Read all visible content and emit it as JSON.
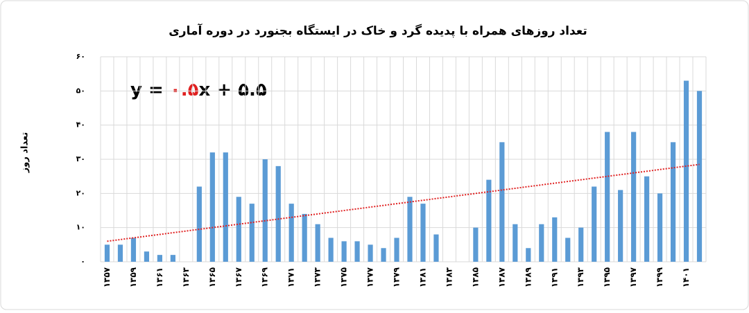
{
  "chart_data": {
    "type": "bar",
    "title": "تعداد روزهای همراه با پدیده گرد و خاک در ایستگاه بجنورد در دوره آماری",
    "y_label": "تعداد روز",
    "categories": [
      "۱۳۵۷",
      null,
      "۱۳۵۹",
      null,
      "۱۳۶۱",
      null,
      "۱۳۶۳",
      null,
      "۱۳۶۵",
      null,
      "۱۳۶۷",
      null,
      "۱۳۶۹",
      null,
      "۱۳۷۱",
      null,
      "۱۳۷۳",
      null,
      "۱۳۷۵",
      null,
      "۱۳۷۷",
      null,
      "۱۳۷۹",
      null,
      "۱۳۸۱",
      null,
      "۱۳۸۳",
      null,
      "۱۳۸۵",
      null,
      "۱۳۸۷",
      null,
      "۱۳۸۹",
      null,
      "۱۳۹۱",
      null,
      "۱۳۹۳",
      null,
      "۱۳۹۵",
      null,
      "۱۳۹۷",
      null,
      "۱۳۹۹",
      null,
      "۱۴۰۱",
      null
    ],
    "values": [
      5,
      5,
      7,
      3,
      2,
      2,
      0,
      22,
      32,
      32,
      19,
      17,
      30,
      28,
      17,
      14,
      11,
      7,
      6,
      6,
      5,
      4,
      7,
      19,
      17,
      8,
      0,
      0,
      10,
      24,
      35,
      11,
      4,
      11,
      13,
      7,
      10,
      22,
      38,
      21,
      38,
      25,
      20,
      35,
      53,
      50
    ],
    "color": "#5b9bd5",
    "ylim": [
      0,
      60
    ],
    "yticks": [
      {
        "value": 0,
        "label": "۰"
      },
      {
        "value": 10,
        "label": "۱۰"
      },
      {
        "value": 20,
        "label": "۲۰"
      },
      {
        "value": 30,
        "label": "۳۰"
      },
      {
        "value": 40,
        "label": "۴۰"
      },
      {
        "value": 50,
        "label": "۵۰"
      },
      {
        "value": 60,
        "label": "۶۰"
      }
    ],
    "grid": true,
    "trendline": {
      "color": "#e02020",
      "prefix": "y = ",
      "slope": {
        "value": 0.5,
        "label": "۰.۵"
      },
      "middle": "x + ",
      "intercept": {
        "value": 5.5,
        "label": "۵.۵"
      }
    }
  }
}
